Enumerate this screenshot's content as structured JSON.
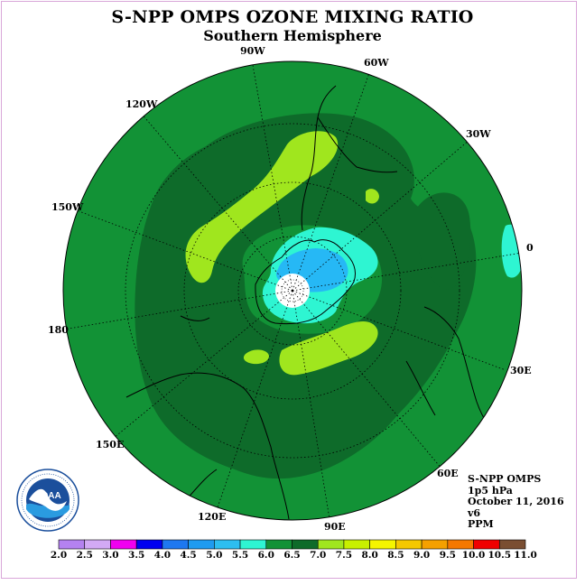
{
  "figure": {
    "title": "S-NPP OMPS OZONE MIXING RATIO",
    "subtitle": "Southern Hemisphere"
  },
  "map": {
    "projection": "polar stereographic (south pole)",
    "longitude_labels": {
      "w90": "90W",
      "w60": "60W",
      "w120": "120W",
      "w30": "30W",
      "w150": "150W",
      "e0": "0",
      "e180": "180",
      "e30": "30E",
      "e150": "150E",
      "e60": "60E",
      "e120": "120E",
      "e90": "90E"
    },
    "colors": {
      "c6_0_6_5": "#129236",
      "c6_5_7_0": "#0e6b2a",
      "c7_0_7_5": "#a0e61e",
      "c5_5_6_0": "#2ef5d2",
      "c5_0_5_5": "#26b8f5",
      "no_data": "#ffffff"
    }
  },
  "info": {
    "instrument": "S-NPP OMPS",
    "pressure": "1p5 hPa",
    "date": "October 11, 2016",
    "version": "v6",
    "units": "PPM"
  },
  "logo": {
    "text": "NOAA"
  },
  "colorbar": {
    "ticks": [
      "2.0",
      "2.5",
      "3.0",
      "3.5",
      "4.0",
      "4.5",
      "5.0",
      "5.5",
      "6.0",
      "6.5",
      "7.0",
      "7.5",
      "8.0",
      "8.5",
      "9.0",
      "9.5",
      "10.0",
      "10.5",
      "11.0"
    ],
    "colors": [
      "#b482f0",
      "#d2aaf5",
      "#f000f0",
      "#0000f0",
      "#1e78f0",
      "#1e9bf0",
      "#2dbef0",
      "#2ef5d2",
      "#129236",
      "#0e6b2a",
      "#a0e61e",
      "#c8f000",
      "#f5f500",
      "#f5c800",
      "#f5a000",
      "#f57800",
      "#f00000",
      "#7a4e32"
    ]
  }
}
